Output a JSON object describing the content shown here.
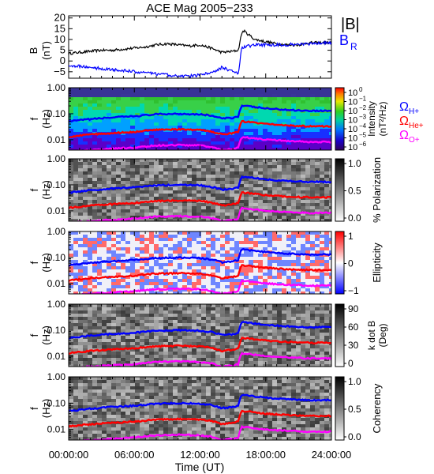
{
  "title": "ACE Mag 2005−233",
  "xlabel": "Time (UT)",
  "x_ticks": [
    "00:00:00",
    "06:00:00",
    "12:00:00",
    "18:00:00",
    "24:00:00"
  ],
  "colors": {
    "B_total": "#000000",
    "B_R": "#0000ff",
    "H_plus": "#0000ff",
    "He_plus": "#ff0000",
    "O_plus": "#ff00ff"
  },
  "panel1": {
    "ylabel_top": "B",
    "ylabel_units": "(nT)",
    "y_ticks": [
      "20",
      "15",
      "10",
      "5",
      "0",
      "−5"
    ],
    "legend_B": "|B|",
    "legend_BR": "B",
    "legend_BR_sub": "R"
  },
  "freq_axis": {
    "ylabel_top": "f",
    "ylabel_units": "(Hz)",
    "ticks": [
      "1.00",
      "0.10",
      "0.01"
    ]
  },
  "panel2": {
    "cbar_ticks": [
      "10",
      "10",
      "10",
      "10",
      "10",
      "10",
      "10"
    ],
    "cbar_exps": [
      "0",
      "−1",
      "−2",
      "−3",
      "−4",
      "−5",
      "−6"
    ],
    "cbar_label1": "Intensity",
    "cbar_label2": "(nT²/Hz)",
    "omega": "Ω",
    "omega_H": "H+",
    "omega_He": "He+",
    "omega_O": "O+"
  },
  "panel3": {
    "cbar_ticks": [
      "1.0",
      "0.5",
      "0.0"
    ],
    "cbar_label": "% Polarization"
  },
  "panel4": {
    "cbar_ticks": [
      "1",
      "0",
      "−1"
    ],
    "cbar_label": "Ellipticity"
  },
  "panel5": {
    "cbar_ticks": [
      "90",
      "60",
      "30",
      "0"
    ],
    "cbar_label1": "k dot B",
    "cbar_label2": "(Deg)"
  },
  "panel6": {
    "cbar_ticks": [
      "1.0",
      "0.5",
      "0.0"
    ],
    "cbar_label": "Coherency"
  },
  "chart_data": {
    "type": "line",
    "title": "ACE Mag 2005−233",
    "xlabel": "Time (UT)",
    "ylabel": "B (nT)",
    "x_unit": "hours UT",
    "xlim": [
      0,
      24
    ],
    "ylim": [
      -8,
      21
    ],
    "series": [
      {
        "name": "|B|",
        "color": "#000000",
        "x": [
          0,
          1,
          2,
          3,
          4,
          5,
          6,
          7,
          8,
          9,
          10,
          11,
          12,
          13,
          14,
          15,
          15.5,
          15.8,
          16,
          16.5,
          17,
          18,
          19,
          20,
          21,
          22,
          23,
          24
        ],
        "y": [
          3.5,
          4,
          4.5,
          5,
          5,
          5.5,
          6,
          6.5,
          7.5,
          8,
          7.5,
          7,
          7.5,
          6,
          4,
          4.5,
          5,
          13,
          14,
          12,
          10,
          9,
          8,
          7.5,
          7.5,
          8.5,
          8.5,
          8.5
        ]
      },
      {
        "name": "B",
        "color": "#0000ff",
        "x": [
          0,
          1,
          2,
          3,
          4,
          5,
          6,
          7,
          8,
          9,
          10,
          11,
          12,
          13,
          14,
          15,
          15.5,
          15.8,
          16,
          16.5,
          17,
          18,
          19,
          20,
          21,
          22,
          23,
          24
        ],
        "y": [
          -2,
          -2.5,
          -3,
          -3.5,
          -4,
          -4.5,
          -5,
          -5.5,
          -6,
          -6.5,
          -7,
          -7,
          -6.5,
          -5.5,
          -3,
          -5,
          -6,
          6,
          6.5,
          7,
          7.5,
          7.5,
          7.5,
          7.5,
          8,
          8,
          8.5,
          8.5
        ]
      }
    ],
    "gyrofrequency_panels": {
      "ylabel": "f (Hz)",
      "ylog": true,
      "ylim": [
        0.004,
        1.0
      ],
      "y_ticks": [
        1.0,
        0.1,
        0.01
      ],
      "x": [
        0,
        2,
        4,
        6,
        8,
        10,
        12,
        13,
        14,
        15,
        15.5,
        15.8,
        16,
        18,
        20,
        22,
        24
      ],
      "series": [
        {
          "name": "ΩH+",
          "color": "#0000ff",
          "y": [
            0.05,
            0.062,
            0.072,
            0.08,
            0.095,
            0.1,
            0.095,
            0.085,
            0.065,
            0.07,
            0.08,
            0.2,
            0.2,
            0.16,
            0.14,
            0.13,
            0.13
          ]
        },
        {
          "name": "ΩHe+",
          "color": "#ff0000",
          "y": [
            0.013,
            0.016,
            0.018,
            0.02,
            0.024,
            0.025,
            0.024,
            0.021,
            0.016,
            0.018,
            0.02,
            0.05,
            0.05,
            0.04,
            0.035,
            0.033,
            0.033
          ]
        },
        {
          "name": "ΩO+",
          "color": "#ff00ff",
          "y": [
            0.0035,
            0.004,
            0.0045,
            0.005,
            0.006,
            0.0063,
            0.006,
            0.0053,
            0.004,
            0.0045,
            0.005,
            0.0125,
            0.0125,
            0.01,
            0.009,
            0.0083,
            0.0083
          ]
        }
      ]
    },
    "spectrogram_panels": [
      {
        "quantity": "Intensity (nT²/Hz)",
        "color_scale": "rainbow log",
        "range": [
          "10⁻⁶",
          "10⁰"
        ]
      },
      {
        "quantity": "% Polarization",
        "color_scale": "grayscale",
        "range": [
          0.0,
          1.0
        ]
      },
      {
        "quantity": "Ellipticity",
        "color_scale": "blue-white-red",
        "range": [
          -1,
          1
        ]
      },
      {
        "quantity": "k dot B (Deg)",
        "color_scale": "grayscale",
        "range": [
          0,
          90
        ]
      },
      {
        "quantity": "Coherency",
        "color_scale": "grayscale",
        "range": [
          0.0,
          1.0
        ]
      }
    ]
  }
}
